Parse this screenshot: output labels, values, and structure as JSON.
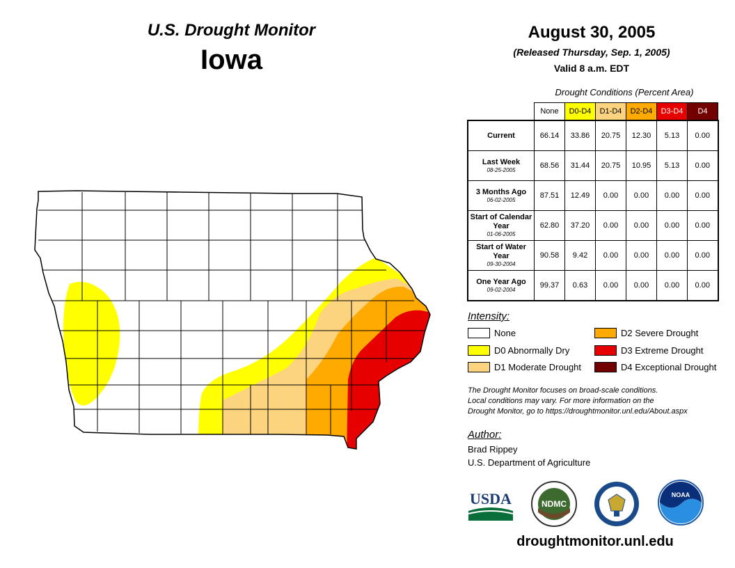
{
  "header": {
    "title": "U.S. Drought Monitor",
    "state": "Iowa",
    "date": "August 30, 2005",
    "released": "(Released Thursday, Sep. 1, 2005)",
    "valid": "Valid 8 a.m. EDT"
  },
  "table": {
    "caption": "Drought Conditions (Percent Area)",
    "columns": [
      "None",
      "D0-D4",
      "D1-D4",
      "D2-D4",
      "D3-D4",
      "D4"
    ],
    "rows": [
      {
        "label": "Current",
        "sublabel": "",
        "values": [
          "66.14",
          "33.86",
          "20.75",
          "12.30",
          "5.13",
          "0.00"
        ]
      },
      {
        "label": "Last Week",
        "sublabel": "08-25-2005",
        "values": [
          "68.56",
          "31.44",
          "20.75",
          "10.95",
          "5.13",
          "0.00"
        ]
      },
      {
        "label": "3 Months Ago",
        "sublabel": "06-02-2005",
        "values": [
          "87.51",
          "12.49",
          "0.00",
          "0.00",
          "0.00",
          "0.00"
        ]
      },
      {
        "label": "Start of Calendar Year",
        "sublabel": "01-06-2005",
        "values": [
          "62.80",
          "37.20",
          "0.00",
          "0.00",
          "0.00",
          "0.00"
        ]
      },
      {
        "label": "Start of Water Year",
        "sublabel": "09-30-2004",
        "values": [
          "90.58",
          "9.42",
          "0.00",
          "0.00",
          "0.00",
          "0.00"
        ]
      },
      {
        "label": "One Year Ago",
        "sublabel": "09-02-2004",
        "values": [
          "99.37",
          "0.63",
          "0.00",
          "0.00",
          "0.00",
          "0.00"
        ]
      }
    ]
  },
  "colors": {
    "none": "#ffffff",
    "d0": "#ffff00",
    "d1": "#fcd37f",
    "d2": "#ffaa00",
    "d3": "#e60000",
    "d4": "#730000",
    "county_line": "#000000"
  },
  "legend": {
    "title": "Intensity:",
    "items": [
      {
        "label": "None",
        "color": "#ffffff"
      },
      {
        "label": "D0 Abnormally Dry",
        "color": "#ffff00"
      },
      {
        "label": "D1 Moderate Drought",
        "color": "#fcd37f"
      },
      {
        "label": "D2 Severe Drought",
        "color": "#ffaa00"
      },
      {
        "label": "D3 Extreme Drought",
        "color": "#e60000"
      },
      {
        "label": "D4 Exceptional Drought",
        "color": "#730000"
      }
    ]
  },
  "note": {
    "line1": "The Drought Monitor focuses on broad-scale conditions.",
    "line2": "Local conditions may vary. For more information on the",
    "line3": "Drought Monitor, go to https://droughtmonitor.unl.edu/About.aspx"
  },
  "author": {
    "title": "Author:",
    "name": "Brad Rippey",
    "org": "U.S. Department of Agriculture"
  },
  "logos": {
    "usda": "USDA",
    "ndmc": "NDMC",
    "noaa": "NOAA"
  },
  "footer": {
    "url": "droughtmonitor.unl.edu"
  }
}
